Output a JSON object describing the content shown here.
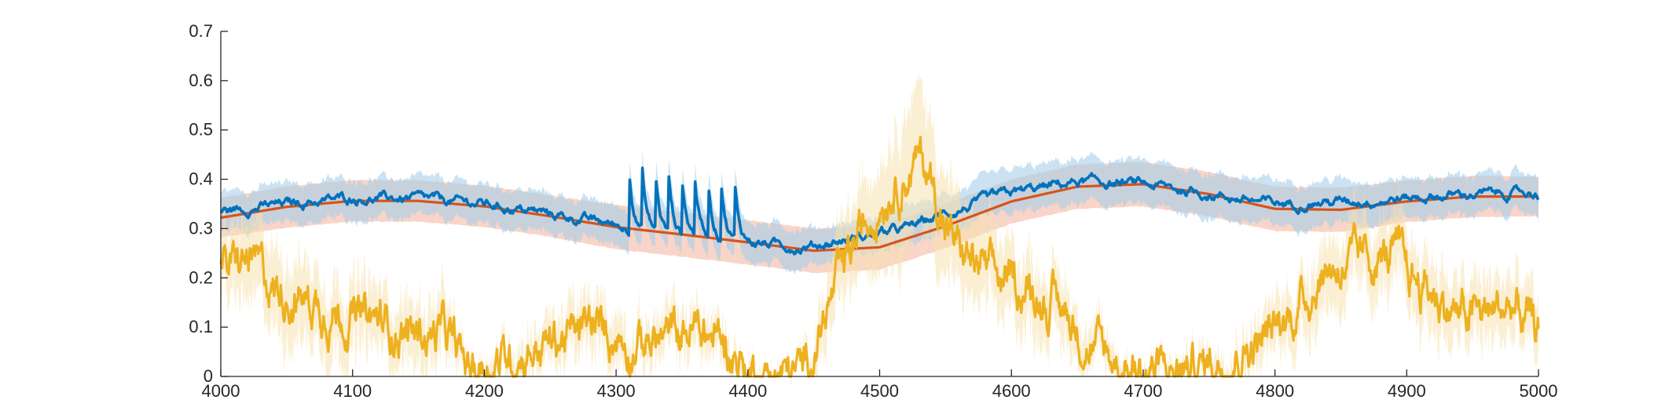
{
  "chart_data": {
    "type": "line",
    "title": "",
    "xlabel": "",
    "ylabel": "",
    "xlim": [
      4000,
      5000
    ],
    "ylim": [
      0,
      0.7
    ],
    "grid": false,
    "legend": "none",
    "x_ticks": [
      4000,
      4100,
      4200,
      4300,
      4400,
      4500,
      4600,
      4700,
      4800,
      4900,
      5000
    ],
    "y_ticks": [
      0,
      0.1,
      0.2,
      0.3,
      0.4,
      0.5,
      0.6,
      0.7
    ],
    "x_tick_labels": [
      "4000",
      "4100",
      "4200",
      "4300",
      "4400",
      "4500",
      "4600",
      "4700",
      "4800",
      "4900",
      "5000"
    ],
    "y_tick_labels": [
      "0",
      "0.1",
      "0.2",
      "0.3",
      "0.4",
      "0.5",
      "0.6",
      "0.7"
    ],
    "series": [
      {
        "color": "#D95319",
        "band_color": "#F4B9A3",
        "x": [
          4000,
          4050,
          4100,
          4150,
          4200,
          4250,
          4300,
          4350,
          4400,
          4450,
          4500,
          4550,
          4600,
          4650,
          4700,
          4750,
          4800,
          4850,
          4900,
          4950,
          5000
        ],
        "values": [
          0.322,
          0.344,
          0.356,
          0.356,
          0.345,
          0.325,
          0.303,
          0.288,
          0.272,
          0.255,
          0.262,
          0.305,
          0.355,
          0.385,
          0.39,
          0.37,
          0.34,
          0.338,
          0.355,
          0.365,
          0.365
        ],
        "band_half_width": [
          0.04,
          0.042,
          0.042,
          0.042,
          0.042,
          0.042,
          0.045,
          0.045,
          0.045,
          0.045,
          0.045,
          0.045,
          0.045,
          0.045,
          0.045,
          0.045,
          0.045,
          0.045,
          0.042,
          0.042,
          0.04
        ]
      },
      {
        "color": "#0072BD",
        "band_color": "#A6CEEA",
        "x": [
          4000,
          4050,
          4100,
          4150,
          4200,
          4250,
          4300,
          4308,
          4440,
          4460,
          4480,
          4500,
          4520,
          4540,
          4550,
          4600,
          4650,
          4700,
          4750,
          4800,
          4850,
          4900,
          4950,
          5000
        ],
        "values": [
          0.335,
          0.35,
          0.362,
          0.36,
          0.35,
          0.33,
          0.307,
          0.3,
          0.262,
          0.27,
          0.28,
          0.29,
          0.3,
          0.32,
          0.33,
          0.372,
          0.395,
          0.39,
          0.37,
          0.35,
          0.355,
          0.362,
          0.37,
          0.372
        ],
        "band_half_width": [
          0.04,
          0.04,
          0.04,
          0.04,
          0.04,
          0.04,
          0.04,
          0.04,
          0.04,
          0.035,
          0.035,
          0.035,
          0.04,
          0.04,
          0.04,
          0.045,
          0.045,
          0.045,
          0.045,
          0.045,
          0.045,
          0.04,
          0.04,
          0.04
        ],
        "spikes": {
          "times": [
            4310,
            4320,
            4330,
            4340,
            4350,
            4360,
            4370,
            4380,
            4390
          ],
          "peaks": [
            0.432,
            0.415,
            0.41,
            0.405,
            0.405,
            0.402,
            0.4,
            0.395,
            0.39
          ],
          "band_peaks": [
            0.46,
            0.45,
            0.445,
            0.44,
            0.44,
            0.44,
            0.435,
            0.43,
            0.43
          ]
        }
      },
      {
        "color": "#EDB120",
        "band_color": "#F7E2AF",
        "x": [
          4000,
          4010,
          4020,
          4030,
          4040,
          4060,
          4080,
          4100,
          4120,
          4140,
          4160,
          4170,
          4180,
          4190,
          4200,
          4220,
          4240,
          4260,
          4280,
          4300,
          4310,
          4320,
          4340,
          4360,
          4380,
          4390,
          4400,
          4410,
          4420,
          4430,
          4440,
          4450,
          4460,
          4470,
          4480,
          4490,
          4500,
          4510,
          4520,
          4530,
          4540,
          4550,
          4560,
          4580,
          4600,
          4620,
          4640,
          4650,
          4660,
          4680,
          4700,
          4720,
          4740,
          4760,
          4780,
          4800,
          4820,
          4840,
          4860,
          4880,
          4890,
          4900,
          4920,
          4940,
          4960,
          4980,
          5000
        ],
        "values": [
          0.22,
          0.215,
          0.23,
          0.215,
          0.18,
          0.16,
          0.14,
          0.12,
          0.11,
          0.09,
          0.085,
          0.09,
          0.04,
          0.02,
          0.025,
          0.04,
          0.06,
          0.08,
          0.095,
          0.085,
          0.07,
          0.07,
          0.08,
          0.095,
          0.07,
          0.045,
          0.01,
          0.005,
          0.005,
          0.005,
          0.01,
          0.06,
          0.13,
          0.2,
          0.26,
          0.31,
          0.36,
          0.39,
          0.41,
          0.44,
          0.4,
          0.3,
          0.26,
          0.21,
          0.185,
          0.17,
          0.13,
          0.1,
          0.06,
          0.03,
          0.012,
          0.01,
          0.02,
          0.035,
          0.06,
          0.09,
          0.15,
          0.22,
          0.23,
          0.24,
          0.25,
          0.21,
          0.17,
          0.12,
          0.13,
          0.14,
          0.09
        ],
        "band_half_width": [
          0.06,
          0.07,
          0.08,
          0.08,
          0.08,
          0.08,
          0.07,
          0.07,
          0.06,
          0.06,
          0.06,
          0.06,
          0.03,
          0.015,
          0.02,
          0.03,
          0.04,
          0.05,
          0.05,
          0.05,
          0.04,
          0.04,
          0.04,
          0.04,
          0.035,
          0.025,
          0.008,
          0.004,
          0.004,
          0.005,
          0.01,
          0.04,
          0.06,
          0.08,
          0.08,
          0.09,
          0.1,
          0.12,
          0.14,
          0.14,
          0.12,
          0.1,
          0.09,
          0.08,
          0.07,
          0.07,
          0.06,
          0.05,
          0.04,
          0.025,
          0.01,
          0.01,
          0.02,
          0.03,
          0.04,
          0.05,
          0.06,
          0.07,
          0.07,
          0.07,
          0.07,
          0.07,
          0.07,
          0.06,
          0.06,
          0.06,
          0.06
        ]
      }
    ]
  }
}
